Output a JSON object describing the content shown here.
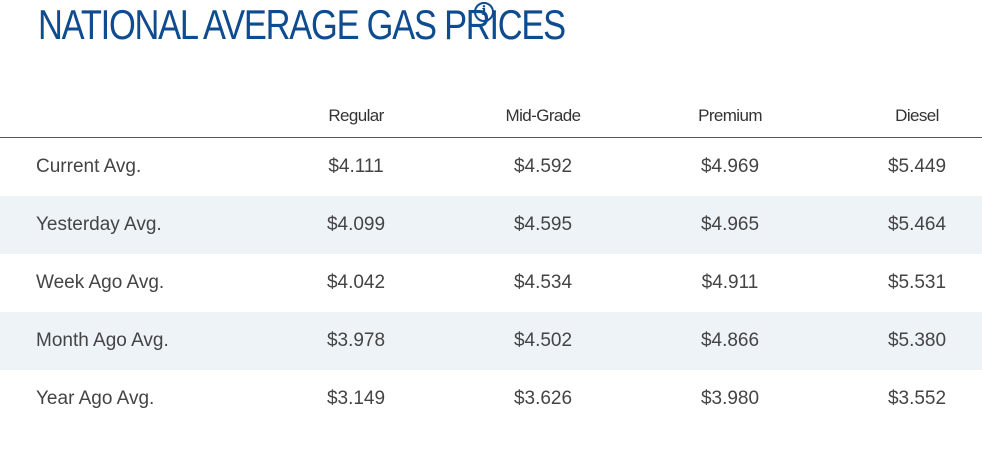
{
  "title": "NATIONAL AVERAGE GAS PRICES",
  "info_icon_glyph": "i",
  "colors": {
    "title": "#0f4c8f",
    "alt_row": "#eef3f8"
  },
  "columns": [
    "Regular",
    "Mid-Grade",
    "Premium",
    "Diesel"
  ],
  "rows": [
    {
      "label": "Current Avg.",
      "values": [
        "$4.111",
        "$4.592",
        "$4.969",
        "$5.449"
      ]
    },
    {
      "label": "Yesterday Avg.",
      "values": [
        "$4.099",
        "$4.595",
        "$4.965",
        "$5.464"
      ]
    },
    {
      "label": "Week Ago Avg.",
      "values": [
        "$4.042",
        "$4.534",
        "$4.911",
        "$5.531"
      ]
    },
    {
      "label": "Month Ago Avg.",
      "values": [
        "$3.978",
        "$4.502",
        "$4.866",
        "$5.380"
      ]
    },
    {
      "label": "Year Ago Avg.",
      "values": [
        "$3.149",
        "$3.626",
        "$3.980",
        "$3.552"
      ]
    }
  ]
}
